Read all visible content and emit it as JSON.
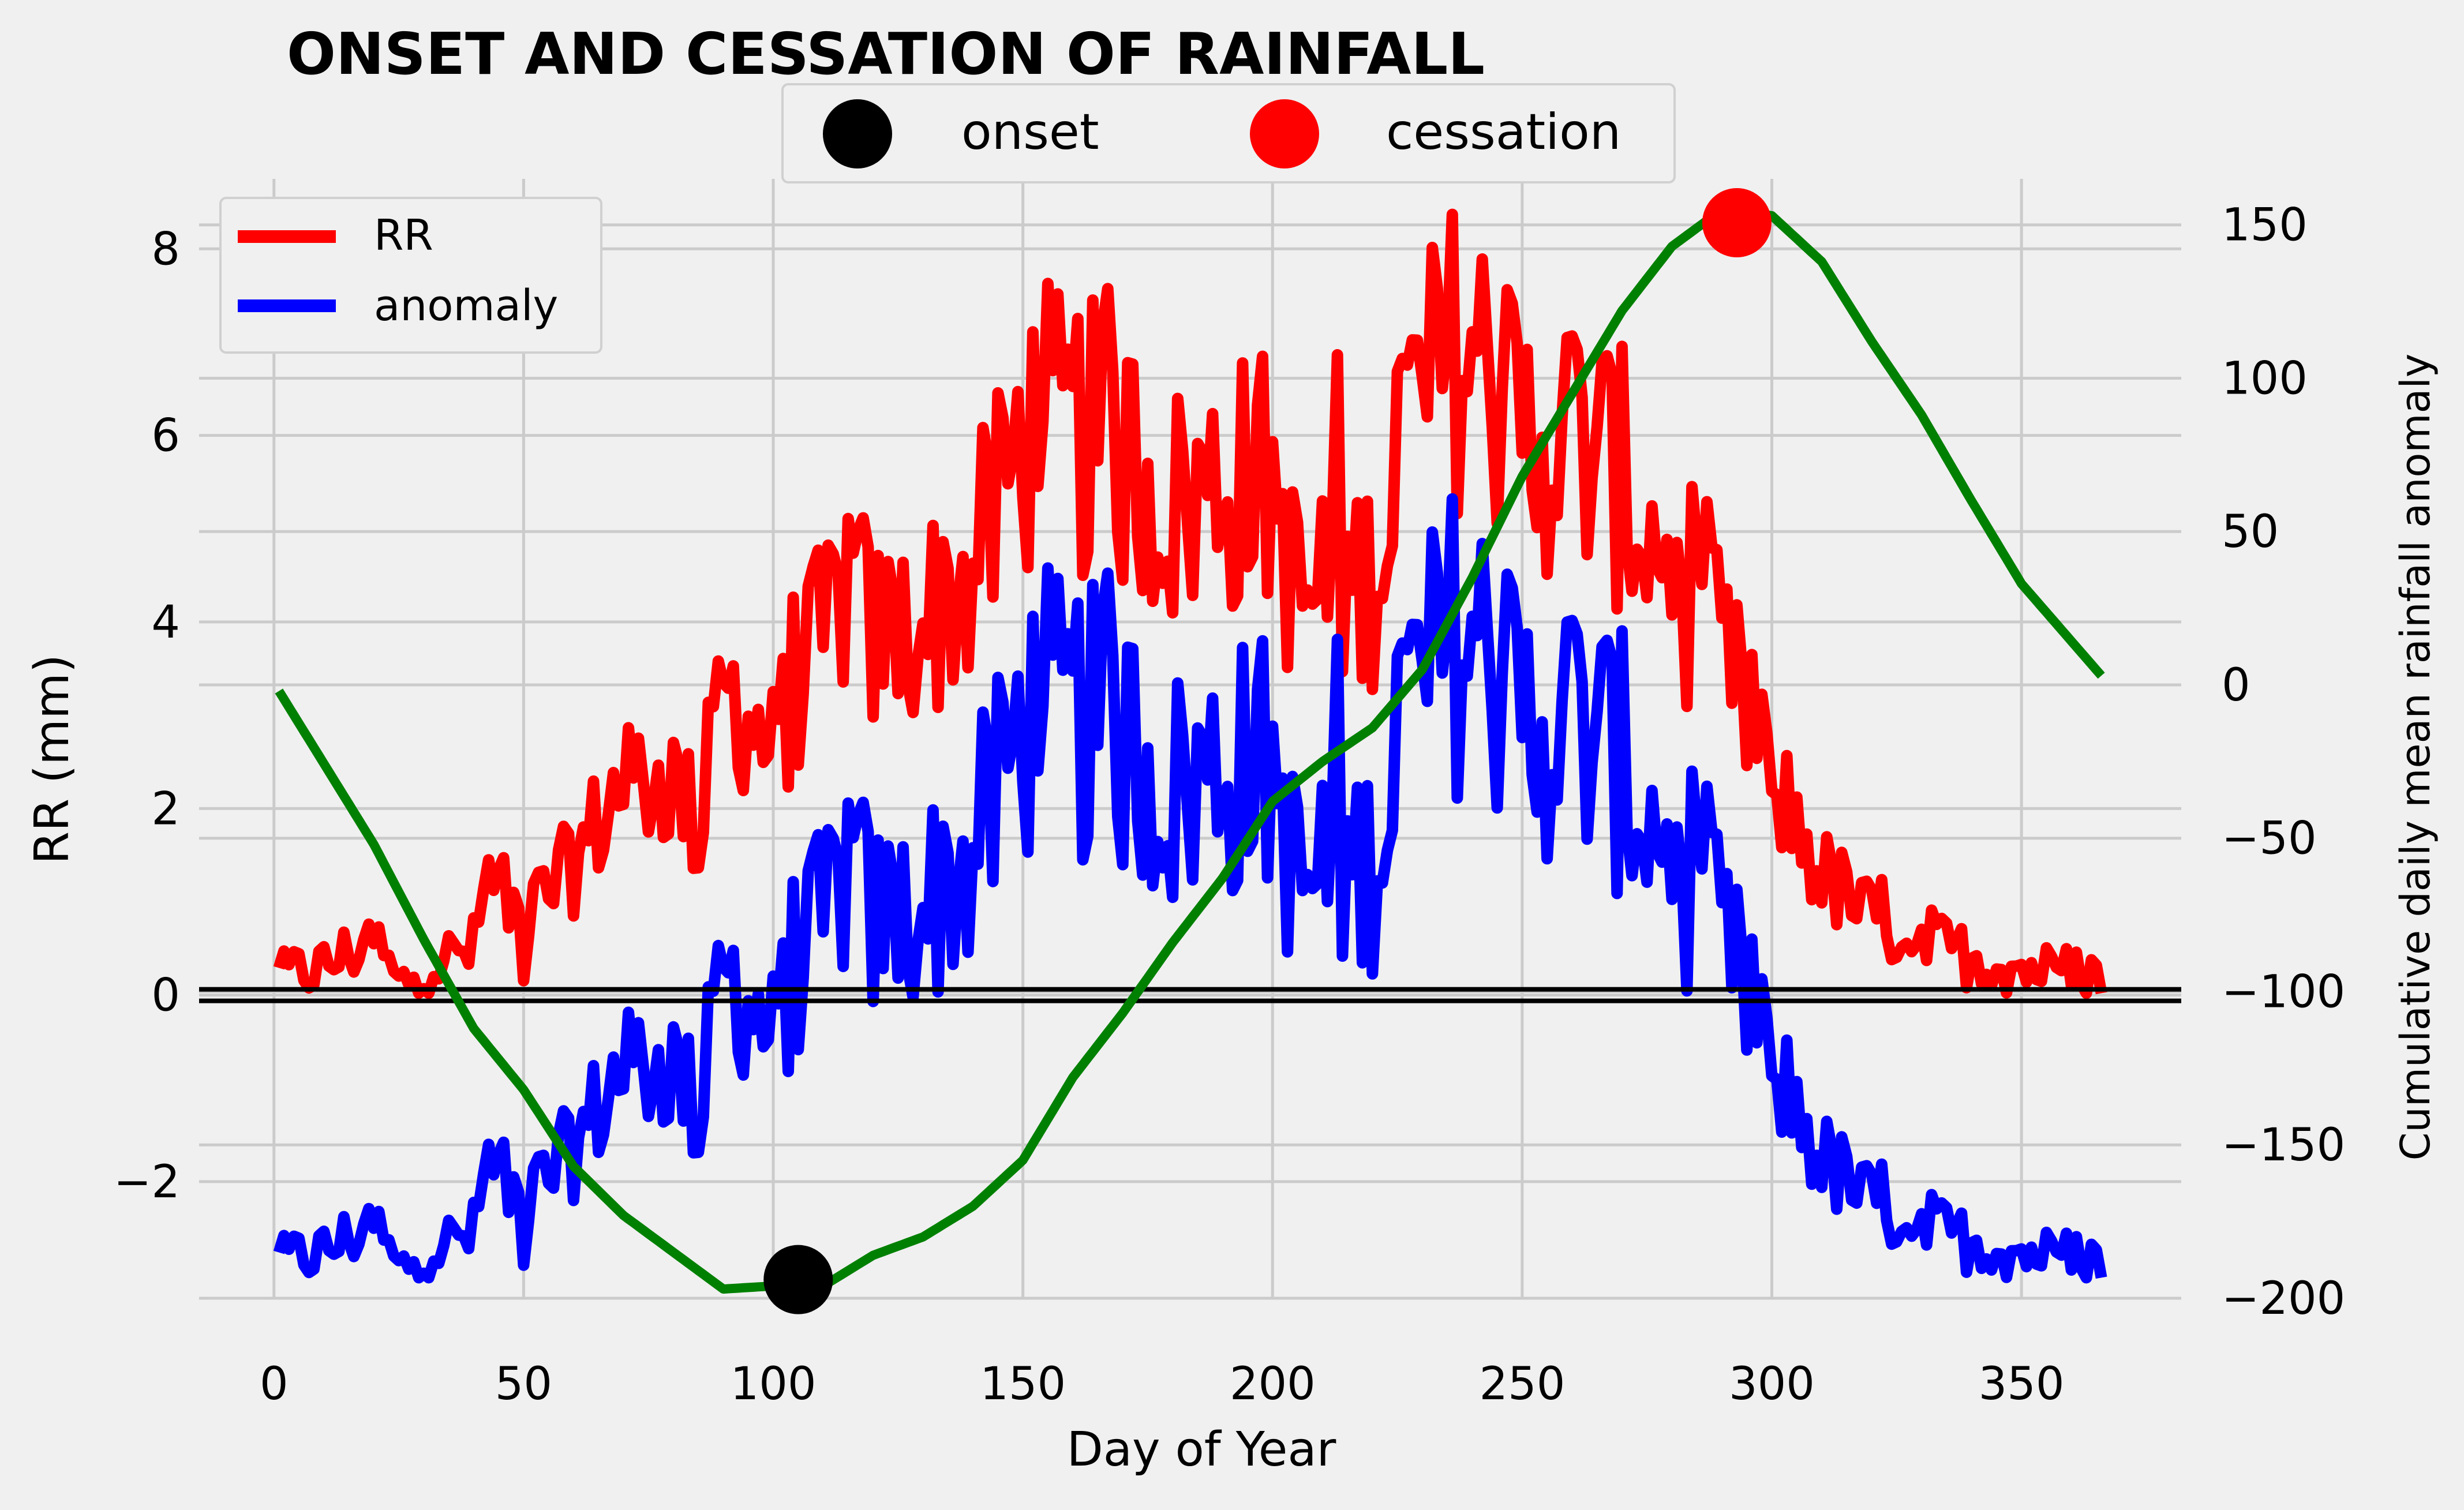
{
  "colors": {
    "background": "#f0f0f0",
    "grid": "#cbcbcb",
    "rr": "#ff0000",
    "anomaly": "#0000ff",
    "cumulative": "#008000",
    "onset": "#000000",
    "cessation": "#ff0000",
    "zero_line": "#000000"
  },
  "chart_data": {
    "type": "line",
    "title": "ONSET AND CESSATION OF RAINFALL",
    "xlabel": "Day of Year",
    "ylabel": "RR (mm)",
    "y2label": "Cumulative daily mean rainfall anomaly",
    "xlim": [
      -15,
      382
    ],
    "ylim": [
      -3.25,
      8.75
    ],
    "y2lim": [
      -200,
      165
    ],
    "xticks": [
      0,
      50,
      100,
      150,
      200,
      250,
      300,
      350
    ],
    "yticks": [
      -2,
      0,
      2,
      4,
      6,
      8
    ],
    "y2ticks": [
      -200,
      -150,
      -100,
      -50,
      0,
      50,
      100,
      150
    ],
    "ytick_labels": [
      "−2",
      "0",
      "2",
      "4",
      "6",
      "8"
    ],
    "y2tick_labels": [
      "−200",
      "−150",
      "−100",
      "−50",
      "0",
      "50",
      "100",
      "150"
    ],
    "grid": true,
    "legend_left": {
      "placement": "upper-left",
      "entries": [
        {
          "label": "RR",
          "color": "#ff0000"
        },
        {
          "label": "anomaly",
          "color": "#0000ff"
        }
      ]
    },
    "legend_top": {
      "placement": "top-center",
      "entries": [
        {
          "label": "onset",
          "color": "#000000"
        },
        {
          "label": "cessation",
          "color": "#ff0000"
        }
      ]
    },
    "rr_keypoints": [
      [
        1,
        0.2
      ],
      [
        10,
        0.3
      ],
      [
        20,
        0.6
      ],
      [
        25,
        0.1
      ],
      [
        30,
        0.3
      ],
      [
        40,
        0.5
      ],
      [
        43,
        1.3
      ],
      [
        50,
        0.8
      ],
      [
        60,
        1.4
      ],
      [
        70,
        2.3
      ],
      [
        80,
        2.3
      ],
      [
        85,
        1.8
      ],
      [
        90,
        3.3
      ],
      [
        95,
        3.0
      ],
      [
        100,
        2.6
      ],
      [
        105,
        3.4
      ],
      [
        110,
        3.8
      ],
      [
        115,
        4.5
      ],
      [
        120,
        3.8
      ],
      [
        130,
        4.0
      ],
      [
        140,
        4.5
      ],
      [
        150,
        6.0
      ],
      [
        160,
        6.0
      ],
      [
        170,
        5.8
      ],
      [
        180,
        5.2
      ],
      [
        190,
        5.5
      ],
      [
        200,
        5.5
      ],
      [
        205,
        4.2
      ],
      [
        210,
        4.3
      ],
      [
        220,
        4.5
      ],
      [
        225,
        6.0
      ],
      [
        230,
        6.3
      ],
      [
        238,
        7.0
      ],
      [
        245,
        6.5
      ],
      [
        250,
        6.0
      ],
      [
        260,
        6.0
      ],
      [
        270,
        5.5
      ],
      [
        280,
        4.5
      ],
      [
        290,
        3.7
      ],
      [
        300,
        2.3
      ],
      [
        310,
        1.3
      ],
      [
        320,
        0.8
      ],
      [
        330,
        0.6
      ],
      [
        340,
        0.4
      ],
      [
        350,
        0.3
      ],
      [
        366,
        0.2
      ]
    ],
    "anomaly_offset": -3.05,
    "cumulative_keypoints": [
      [
        1,
        -2
      ],
      [
        20,
        -52
      ],
      [
        30,
        -83
      ],
      [
        40,
        -112
      ],
      [
        50,
        -132
      ],
      [
        60,
        -157
      ],
      [
        70,
        -173
      ],
      [
        80,
        -185
      ],
      [
        90,
        -197
      ],
      [
        100,
        -196
      ],
      [
        110,
        -196
      ],
      [
        120,
        -186
      ],
      [
        130,
        -180
      ],
      [
        140,
        -170
      ],
      [
        150,
        -155
      ],
      [
        160,
        -128
      ],
      [
        170,
        -107
      ],
      [
        180,
        -84
      ],
      [
        190,
        -63
      ],
      [
        200,
        -38
      ],
      [
        210,
        -25
      ],
      [
        220,
        -14
      ],
      [
        230,
        5
      ],
      [
        240,
        35
      ],
      [
        250,
        68
      ],
      [
        260,
        95
      ],
      [
        270,
        122
      ],
      [
        280,
        143
      ],
      [
        290,
        155
      ],
      [
        300,
        153
      ],
      [
        310,
        138
      ],
      [
        320,
        112
      ],
      [
        330,
        88
      ],
      [
        340,
        60
      ],
      [
        350,
        33
      ],
      [
        366,
        3
      ]
    ],
    "onset": {
      "x": 105,
      "y": -3.05
    },
    "cessation": {
      "x": 293,
      "y": 8.28
    }
  }
}
